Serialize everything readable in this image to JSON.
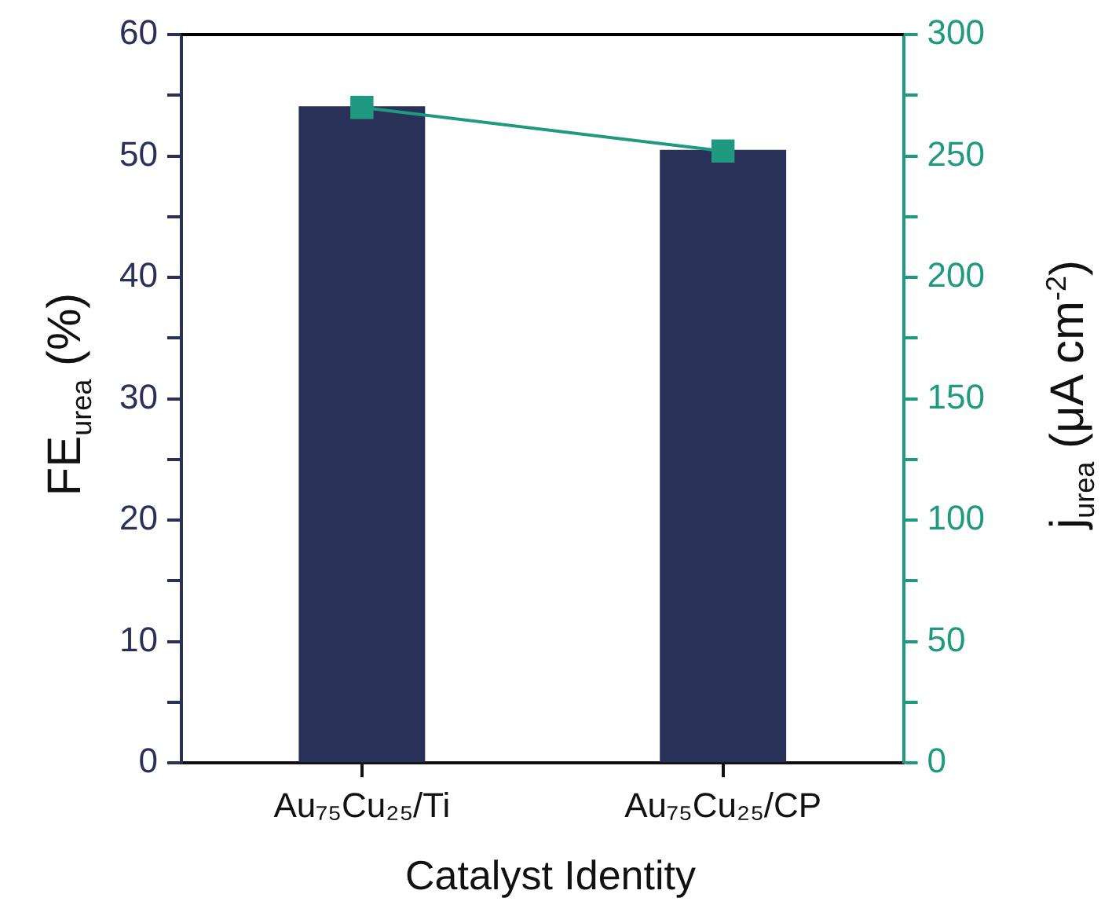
{
  "chart_data": {
    "type": "bar",
    "xlabel": "Catalyst Identity",
    "ylabel": "FE$_{urea}$ (%)",
    "y2label": "j$_{urea}$ (μA cm$^{-2}$)",
    "categories": [
      "Au₇₅Cu₂₅/Ti",
      "Au₇₅Cu₂₅/CP"
    ],
    "series": [
      {
        "color": "#2a3159",
        "values": [
          54.1,
          50.5
        ]
      },
      {
        "type": "line",
        "axis": "y2",
        "color": "#1f9a80",
        "values": [
          270,
          252
        ]
      }
    ],
    "ylim": [
      0,
      60
    ],
    "yticks": [
      0,
      {
        "value": 5,
        "label": null
      },
      10,
      {
        "value": 15,
        "label": null
      },
      20,
      {
        "value": 25,
        "label": null
      },
      30,
      {
        "value": 35,
        "label": null
      },
      40,
      {
        "value": 45,
        "label": null
      },
      50,
      {
        "value": 55,
        "label": null
      },
      60
    ],
    "y2lim": [
      0,
      300
    ],
    "y2ticks": [
      0,
      {
        "value": 25,
        "label": null
      },
      50,
      {
        "value": 75,
        "label": null
      },
      100,
      {
        "value": 125,
        "label": null
      },
      150,
      {
        "value": 175,
        "label": null
      },
      200,
      {
        "value": 225,
        "label": null
      },
      250,
      {
        "value": 275,
        "label": null
      },
      300
    ],
    "grid": false,
    "legend": false,
    "marker": "square",
    "line_style": "solid"
  }
}
